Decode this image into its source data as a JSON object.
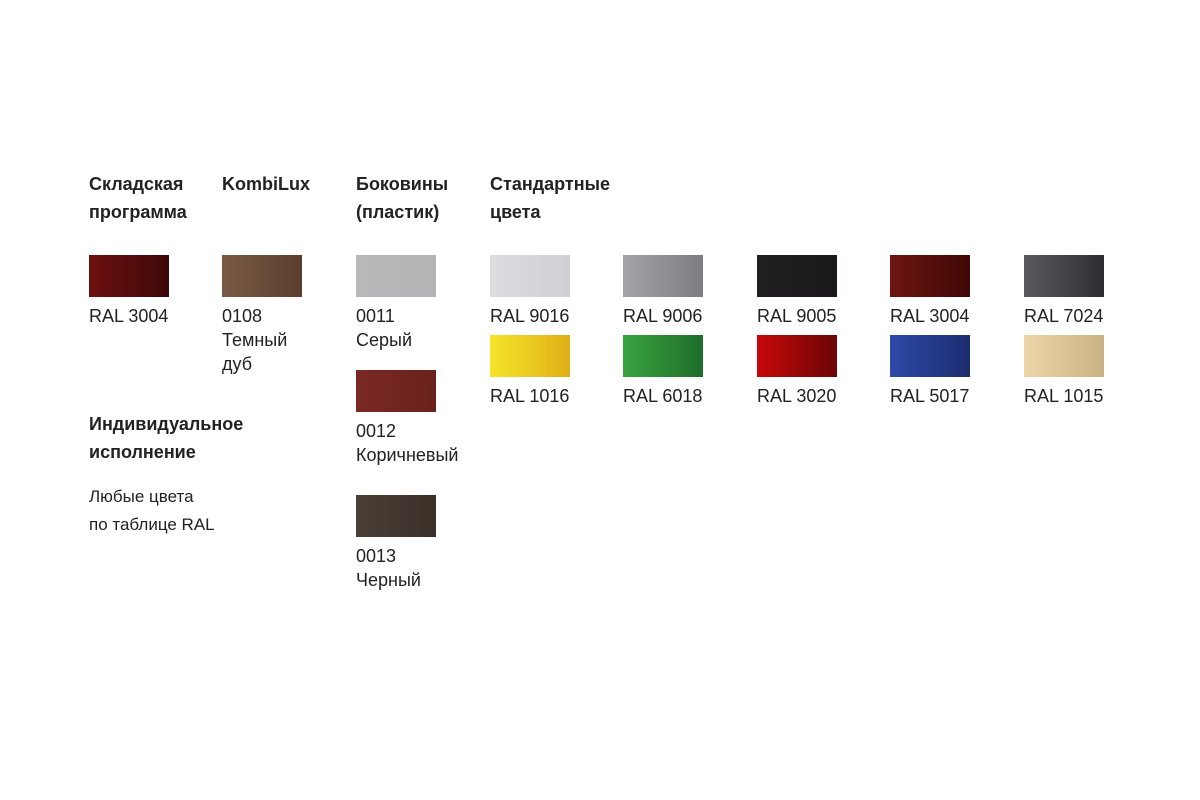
{
  "headings": {
    "stock": "Складская\nпрограмма",
    "kombilux": "KombiLux",
    "sides": "Боковины\n(пластик)",
    "standard": "Стандартные\nцвета",
    "custom": "Индивидуальное\nисполнение"
  },
  "custom_text": "Любые цвета\nпо таблице RAL",
  "stock": [
    {
      "label": "RAL 3004",
      "colors": [
        "#6e1010",
        "#3d0808"
      ]
    }
  ],
  "kombilux": [
    {
      "label": "0108\nТемный\nдуб",
      "colors": [
        "#7a5a45",
        "#5a3e2e"
      ]
    }
  ],
  "sides": [
    {
      "label": "0011\nСерый",
      "colors": [
        "#b8b9bb",
        "#b3b4b6"
      ]
    },
    {
      "label": "0012\nКоричневый",
      "colors": [
        "#7b2a24",
        "#6a211c"
      ]
    },
    {
      "label": "0013\nЧерный",
      "colors": [
        "#4a3f37",
        "#3a3029"
      ]
    }
  ],
  "standard": [
    {
      "label": "RAL 9016",
      "colors": [
        "#dcdde0",
        "#cfd0d3"
      ]
    },
    {
      "label": "RAL 9006",
      "colors": [
        "#a3a4a8",
        "#7c7d81"
      ]
    },
    {
      "label": "RAL 9005",
      "colors": [
        "#222022",
        "#1a181a"
      ]
    },
    {
      "label": "RAL 3004",
      "colors": [
        "#6e1510",
        "#3e0806"
      ]
    },
    {
      "label": "RAL 7024",
      "colors": [
        "#5a5b60",
        "#2c2d31"
      ]
    },
    {
      "label": "RAL 1016",
      "colors": [
        "#f5e52a",
        "#dfaf17"
      ]
    },
    {
      "label": "RAL 6018",
      "colors": [
        "#3aa33f",
        "#1f6e2b"
      ]
    },
    {
      "label": "RAL 3020",
      "colors": [
        "#c80808",
        "#6a0606"
      ]
    },
    {
      "label": "RAL 5017",
      "colors": [
        "#2d4aa8",
        "#1c2c70"
      ]
    },
    {
      "label": "RAL 1015",
      "colors": [
        "#ecd6a9",
        "#c9b282"
      ]
    }
  ]
}
